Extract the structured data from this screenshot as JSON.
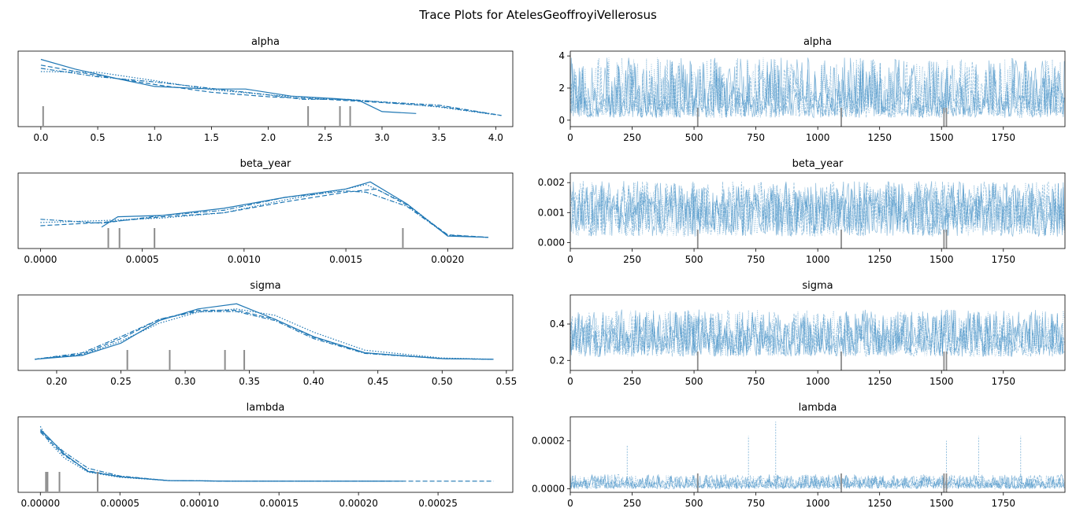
{
  "figure": {
    "title": "Trace Plots for AtelesGeoffroyiVellerosus"
  },
  "colors": {
    "line": "#1f77b4",
    "trace": "#3b8bc2",
    "tick_marks": "#8c8c8c",
    "axes": "#000000"
  },
  "chart_data": [
    {
      "type": "line",
      "panel": "density",
      "title": "alpha",
      "xlim": [
        -0.2,
        4.15
      ],
      "xticks": [
        0.0,
        0.5,
        1.0,
        1.5,
        2.0,
        2.5,
        3.0,
        3.5,
        4.0
      ],
      "xtick_labels": [
        "0.0",
        "0.5",
        "1.0",
        "1.5",
        "2.0",
        "2.5",
        "3.0",
        "3.5",
        "4.0"
      ],
      "y_relative_max": 1.0,
      "series": [
        {
          "style": "solid",
          "x": [
            0.0,
            0.3,
            0.7,
            1.0,
            1.5,
            1.8,
            2.2,
            2.6,
            2.8,
            3.0,
            3.3
          ],
          "y": [
            0.97,
            0.82,
            0.66,
            0.55,
            0.51,
            0.51,
            0.4,
            0.36,
            0.33,
            0.16,
            0.13
          ]
        },
        {
          "style": "dashed",
          "x": [
            0.0,
            0.5,
            1.0,
            1.5,
            2.0,
            2.5,
            3.0,
            3.5,
            4.05
          ],
          "y": [
            0.88,
            0.72,
            0.58,
            0.46,
            0.39,
            0.35,
            0.3,
            0.24,
            0.1
          ]
        },
        {
          "style": "dotted",
          "x": [
            0.0,
            0.5,
            1.0,
            1.5,
            2.0,
            2.5,
            3.0,
            3.5,
            4.0
          ],
          "y": [
            0.78,
            0.77,
            0.64,
            0.5,
            0.42,
            0.36,
            0.31,
            0.23,
            0.11
          ]
        },
        {
          "style": "dashdot",
          "x": [
            0.0,
            0.5,
            1.0,
            1.5,
            2.0,
            2.3,
            2.7,
            3.0,
            3.5,
            4.05
          ],
          "y": [
            0.83,
            0.7,
            0.62,
            0.52,
            0.42,
            0.35,
            0.35,
            0.31,
            0.26,
            0.1
          ]
        }
      ],
      "divergence_ticks": [
        0.02,
        2.35,
        2.63,
        2.72
      ]
    },
    {
      "type": "line",
      "panel": "trace",
      "title": "alpha",
      "xlim": [
        0,
        1999
      ],
      "ylim": [
        -0.4,
        4.3
      ],
      "xticks": [
        0,
        250,
        500,
        750,
        1000,
        1250,
        1500,
        1750
      ],
      "xtick_labels": [
        "0",
        "250",
        "500",
        "750",
        "1000",
        "1250",
        "1500",
        "1750"
      ],
      "yticks": [
        0,
        2,
        4
      ],
      "ytick_labels": [
        "0",
        "2",
        "4"
      ],
      "band": {
        "low": 0.15,
        "high": 3.9,
        "center": 1.2
      },
      "divergence_ticks": [
        515,
        1095,
        1510,
        1520
      ]
    },
    {
      "type": "line",
      "panel": "density",
      "title": "beta_year",
      "xlim": [
        -0.00011,
        0.00232
      ],
      "xticks": [
        0.0,
        0.0005,
        0.001,
        0.0015,
        0.002
      ],
      "xtick_labels": [
        "0.0000",
        "0.0005",
        "0.0010",
        "0.0015",
        "0.0020"
      ],
      "y_relative_max": 1.0,
      "series": [
        {
          "style": "solid",
          "x": [
            0.0003,
            0.00038,
            0.0006,
            0.0009,
            0.0012,
            0.0015,
            0.00162,
            0.0018,
            0.002,
            0.0022
          ],
          "y": [
            0.26,
            0.42,
            0.44,
            0.55,
            0.72,
            0.85,
            0.96,
            0.62,
            0.12,
            0.1
          ]
        },
        {
          "style": "dashed",
          "x": [
            0.0,
            0.0003,
            0.0006,
            0.0009,
            0.0012,
            0.0015,
            0.00165,
            0.0018,
            0.002,
            0.0022
          ],
          "y": [
            0.28,
            0.33,
            0.42,
            0.48,
            0.65,
            0.8,
            0.85,
            0.6,
            0.14,
            0.1
          ]
        },
        {
          "style": "dotted",
          "x": [
            0.0,
            0.0003,
            0.0006,
            0.0009,
            0.0012,
            0.0015,
            0.0016,
            0.0018,
            0.002,
            0.0022
          ],
          "y": [
            0.33,
            0.36,
            0.4,
            0.48,
            0.68,
            0.85,
            0.92,
            0.62,
            0.13,
            0.1
          ]
        },
        {
          "style": "dashdot",
          "x": [
            0.0,
            0.0003,
            0.0006,
            0.0009,
            0.0012,
            0.0015,
            0.0016,
            0.0018,
            0.002,
            0.0022
          ],
          "y": [
            0.38,
            0.32,
            0.44,
            0.52,
            0.72,
            0.82,
            0.8,
            0.58,
            0.13,
            0.1
          ]
        }
      ],
      "divergence_ticks": [
        0.000333,
        0.000388,
        0.00056,
        0.00178
      ]
    },
    {
      "type": "line",
      "panel": "trace",
      "title": "beta_year",
      "xlim": [
        0,
        1999
      ],
      "ylim": [
        -0.0002,
        0.00232
      ],
      "xticks": [
        0,
        250,
        500,
        750,
        1000,
        1250,
        1500,
        1750
      ],
      "xtick_labels": [
        "0",
        "250",
        "500",
        "750",
        "1000",
        "1250",
        "1500",
        "1750"
      ],
      "yticks": [
        0.0,
        0.001,
        0.002
      ],
      "ytick_labels": [
        "0.000",
        "0.001",
        "0.002"
      ],
      "band": {
        "low": 0.0002,
        "high": 0.00205,
        "center": 0.0012
      },
      "divergence_ticks": [
        515,
        1095,
        1510,
        1520
      ]
    },
    {
      "type": "line",
      "panel": "density",
      "title": "sigma",
      "xlim": [
        0.17,
        0.555
      ],
      "xticks": [
        0.2,
        0.25,
        0.3,
        0.35,
        0.4,
        0.45,
        0.5,
        0.55
      ],
      "xtick_labels": [
        "0.20",
        "0.25",
        "0.30",
        "0.35",
        "0.40",
        "0.45",
        "0.50",
        "0.55"
      ],
      "y_relative_max": 1.0,
      "series": [
        {
          "style": "solid",
          "x": [
            0.183,
            0.22,
            0.25,
            0.28,
            0.31,
            0.34,
            0.37,
            0.4,
            0.44,
            0.5,
            0.54
          ],
          "y": [
            0.1,
            0.16,
            0.35,
            0.7,
            0.88,
            0.96,
            0.72,
            0.45,
            0.2,
            0.11,
            0.1
          ]
        },
        {
          "style": "dashed",
          "x": [
            0.183,
            0.22,
            0.25,
            0.28,
            0.31,
            0.34,
            0.37,
            0.4,
            0.44,
            0.5,
            0.54
          ],
          "y": [
            0.1,
            0.18,
            0.42,
            0.72,
            0.86,
            0.86,
            0.72,
            0.44,
            0.2,
            0.11,
            0.1
          ]
        },
        {
          "style": "dotted",
          "x": [
            0.183,
            0.22,
            0.25,
            0.28,
            0.31,
            0.34,
            0.37,
            0.4,
            0.44,
            0.5,
            0.54
          ],
          "y": [
            0.1,
            0.17,
            0.38,
            0.66,
            0.83,
            0.88,
            0.78,
            0.52,
            0.24,
            0.12,
            0.1
          ]
        },
        {
          "style": "dashdot",
          "x": [
            0.183,
            0.22,
            0.25,
            0.28,
            0.31,
            0.34,
            0.37,
            0.4,
            0.44,
            0.5,
            0.54
          ],
          "y": [
            0.1,
            0.2,
            0.45,
            0.72,
            0.84,
            0.84,
            0.7,
            0.42,
            0.19,
            0.11,
            0.1
          ]
        }
      ],
      "divergence_ticks": [
        0.255,
        0.288,
        0.331,
        0.346
      ]
    },
    {
      "type": "line",
      "panel": "trace",
      "title": "sigma",
      "xlim": [
        0,
        1999
      ],
      "ylim": [
        0.145,
        0.56
      ],
      "xticks": [
        0,
        250,
        500,
        750,
        1000,
        1250,
        1500,
        1750
      ],
      "xtick_labels": [
        "0",
        "250",
        "500",
        "750",
        "1000",
        "1250",
        "1500",
        "1750"
      ],
      "yticks": [
        0.2,
        0.4
      ],
      "ytick_labels": [
        "0.2",
        "0.4"
      ],
      "band": {
        "low": 0.22,
        "high": 0.48,
        "center": 0.33
      },
      "divergence_ticks": [
        515,
        1095,
        1510,
        1520
      ]
    },
    {
      "type": "line",
      "panel": "density",
      "title": "lambda",
      "xlim": [
        -1.4e-05,
        0.000297
      ],
      "xticks": [
        0.0,
        5e-05,
        0.0001,
        0.00015,
        0.0002,
        0.00025
      ],
      "xtick_labels": [
        "0.00000",
        "0.00005",
        "0.00010",
        "0.00015",
        "0.00020",
        "0.00025"
      ],
      "y_relative_max": 1.0,
      "series": [
        {
          "style": "solid",
          "x": [
            0.0,
            5e-06,
            1.5e-05,
            3e-05,
            5e-05,
            8e-05,
            0.00012,
            0.00018,
            0.000228
          ],
          "y": [
            0.9,
            0.78,
            0.52,
            0.25,
            0.17,
            0.11,
            0.1,
            0.1,
            0.1
          ]
        },
        {
          "style": "dashed",
          "x": [
            0.0,
            5e-06,
            1.5e-05,
            3e-05,
            5e-05,
            8e-05,
            0.00012,
            0.0002,
            0.000285
          ],
          "y": [
            0.86,
            0.74,
            0.5,
            0.26,
            0.17,
            0.11,
            0.1,
            0.1,
            0.1
          ]
        },
        {
          "style": "dotted",
          "x": [
            0.0,
            5e-06,
            1.5e-05,
            3e-05,
            5e-05,
            8e-05,
            0.00012,
            0.00018,
            0.00022
          ],
          "y": [
            0.95,
            0.72,
            0.46,
            0.24,
            0.16,
            0.11,
            0.1,
            0.1,
            0.1
          ]
        },
        {
          "style": "dashdot",
          "x": [
            0.0,
            5e-06,
            1.5e-05,
            3e-05,
            5e-05,
            8e-05,
            0.00012,
            0.00018,
            0.00022
          ],
          "y": [
            0.88,
            0.76,
            0.55,
            0.3,
            0.18,
            0.11,
            0.1,
            0.1,
            0.1
          ]
        }
      ],
      "divergence_ticks": [
        3.5e-06,
        4.5e-06,
        1.2e-05,
        3.6e-05
      ]
    },
    {
      "type": "line",
      "panel": "trace",
      "title": "lambda",
      "xlim": [
        0,
        1999
      ],
      "ylim": [
        -1.5e-05,
        0.0003
      ],
      "xticks": [
        0,
        250,
        500,
        750,
        1000,
        1250,
        1500,
        1750
      ],
      "xtick_labels": [
        "0",
        "250",
        "500",
        "750",
        "1000",
        "1250",
        "1500",
        "1750"
      ],
      "yticks": [
        0.0,
        0.0002
      ],
      "ytick_labels": [
        "0.0000",
        "0.0002"
      ],
      "band": {
        "low": 0.0,
        "high": 6e-05,
        "center": 2e-05
      },
      "spikes": [
        [
          230,
          0.00018
        ],
        [
          720,
          0.00022
        ],
        [
          830,
          0.00028
        ],
        [
          1520,
          0.0002
        ],
        [
          1650,
          0.00022
        ],
        [
          1820,
          0.00022
        ]
      ],
      "divergence_ticks": [
        515,
        1095,
        1510,
        1520
      ]
    }
  ]
}
